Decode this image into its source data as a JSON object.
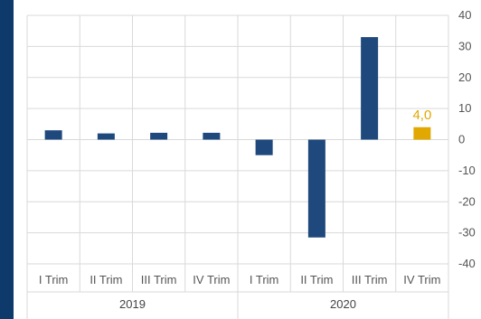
{
  "chart_data": {
    "type": "bar",
    "title": "",
    "xlabel": "",
    "ylabel": "",
    "categories": [
      "I Trim",
      "II Trim",
      "III Trim",
      "IV Trim",
      "I Trim",
      "II Trim",
      "III Trim",
      "IV Trim"
    ],
    "groups": [
      {
        "label": "2019",
        "start": 0,
        "end": 3
      },
      {
        "label": "2020",
        "start": 4,
        "end": 7
      }
    ],
    "values": [
      3.0,
      2.0,
      2.2,
      2.2,
      -5.0,
      -31.5,
      33.0,
      4.0
    ],
    "highlight_index": 7,
    "data_labels": [
      {
        "index": 7,
        "text": "4,0"
      }
    ],
    "ylim": [
      -40,
      40
    ],
    "yticks": [
      "40",
      "30",
      "20",
      "10",
      "0",
      "-10",
      "-20",
      "-30",
      "-40"
    ],
    "ytick_values": [
      40,
      30,
      20,
      10,
      0,
      -10,
      -20,
      -30,
      -40
    ],
    "y_axis_side": "right",
    "grid": true,
    "colors": {
      "bar": "#1f497d",
      "highlight": "#e0a800",
      "grid": "#d9d9d9",
      "frame_background": "#0e3a6b"
    }
  }
}
